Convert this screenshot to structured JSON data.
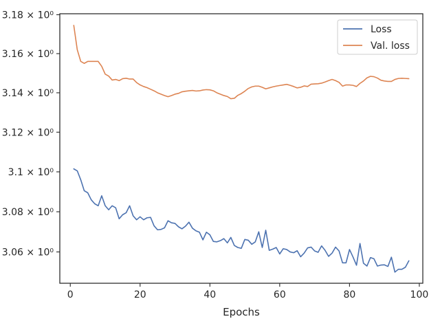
{
  "chart_data": {
    "type": "line",
    "title": "",
    "xlabel": "Epochs",
    "ylabel": "",
    "yscale": "log",
    "xlim": [
      -3,
      101
    ],
    "ylim": [
      3.0445,
      3.1805
    ],
    "xticks": [
      0,
      20,
      40,
      60,
      80,
      100
    ],
    "xtick_labels": [
      "0",
      "20",
      "40",
      "60",
      "80",
      "100"
    ],
    "yticks": [
      3.06,
      3.08,
      3.1,
      3.12,
      3.14,
      3.16,
      3.18
    ],
    "ytick_labels": [
      "3.06 × 10⁰",
      "3.08 × 10⁰",
      "3.1 × 10⁰",
      "3.12 × 10⁰",
      "3.14 × 10⁰",
      "3.16 × 10⁰",
      "3.18 × 10⁰"
    ],
    "grid": false,
    "legend": "top-right",
    "x": [
      1,
      2,
      3,
      4,
      5,
      6,
      7,
      8,
      9,
      10,
      11,
      12,
      13,
      14,
      15,
      16,
      17,
      18,
      19,
      20,
      21,
      22,
      23,
      24,
      25,
      26,
      27,
      28,
      29,
      30,
      31,
      32,
      33,
      34,
      35,
      36,
      37,
      38,
      39,
      40,
      41,
      42,
      43,
      44,
      45,
      46,
      47,
      48,
      49,
      50,
      51,
      52,
      53,
      54,
      55,
      56,
      57,
      58,
      59,
      60,
      61,
      62,
      63,
      64,
      65,
      66,
      67,
      68,
      69,
      70,
      71,
      72,
      73,
      74,
      75,
      76,
      77,
      78,
      79,
      80,
      81,
      82,
      83,
      84,
      85,
      86,
      87,
      88,
      89,
      90,
      91,
      92,
      93,
      94,
      95,
      96,
      97
    ],
    "series": [
      {
        "name": "Loss",
        "color": "#4c72b0",
        "values": [
          3.1015,
          3.1005,
          3.096,
          3.0905,
          3.0895,
          3.086,
          3.084,
          3.083,
          3.088,
          3.083,
          3.081,
          3.083,
          3.082,
          3.0765,
          3.0785,
          3.0795,
          3.083,
          3.078,
          3.076,
          3.0775,
          3.076,
          3.077,
          3.0772,
          3.073,
          3.071,
          3.0712,
          3.072,
          3.0755,
          3.0745,
          3.0742,
          3.0725,
          3.0715,
          3.0728,
          3.0748,
          3.0718,
          3.0705,
          3.0698,
          3.066,
          3.0698,
          3.0685,
          3.0652,
          3.065,
          3.0656,
          3.0666,
          3.0645,
          3.0672,
          3.0632,
          3.0622,
          3.0618,
          3.0662,
          3.0658,
          3.0638,
          3.065,
          3.07,
          3.0622,
          3.0708,
          3.0608,
          3.0614,
          3.0622,
          3.059,
          3.0616,
          3.0612,
          3.06,
          3.0596,
          3.0606,
          3.0576,
          3.0594,
          3.062,
          3.0624,
          3.0605,
          3.0598,
          3.063,
          3.0608,
          3.0578,
          3.0594,
          3.0624,
          3.0605,
          3.0546,
          3.0546,
          3.0612,
          3.0575,
          3.0534,
          3.0642,
          3.0544,
          3.053,
          3.0572,
          3.0566,
          3.053,
          3.0535,
          3.0536,
          3.0528,
          3.0574,
          3.05,
          3.0514,
          3.0514,
          3.0524,
          3.0556
        ]
      },
      {
        "name": "Val. loss",
        "color": "#dd8452",
        "values": [
          3.1745,
          3.162,
          3.156,
          3.155,
          3.156,
          3.156,
          3.156,
          3.156,
          3.1535,
          3.1495,
          3.1485,
          3.1465,
          3.1468,
          3.1462,
          3.1472,
          3.1474,
          3.147,
          3.147,
          3.1452,
          3.144,
          3.1432,
          3.1426,
          3.1418,
          3.141,
          3.14,
          3.1393,
          3.1386,
          3.138,
          3.1386,
          3.1393,
          3.1397,
          3.1405,
          3.1408,
          3.141,
          3.1412,
          3.1409,
          3.141,
          3.1414,
          3.1416,
          3.1415,
          3.141,
          3.14,
          3.1393,
          3.1386,
          3.1381,
          3.137,
          3.1372,
          3.1387,
          3.1396,
          3.1408,
          3.1422,
          3.143,
          3.1434,
          3.1434,
          3.1428,
          3.142,
          3.1425,
          3.143,
          3.1434,
          3.1437,
          3.144,
          3.1443,
          3.1438,
          3.1432,
          3.1425,
          3.1428,
          3.1435,
          3.1432,
          3.1444,
          3.1445,
          3.1446,
          3.1449,
          3.1455,
          3.1462,
          3.1468,
          3.1462,
          3.1453,
          3.1434,
          3.144,
          3.144,
          3.1438,
          3.1432,
          3.1448,
          3.146,
          3.1476,
          3.1484,
          3.1482,
          3.1475,
          3.1464,
          3.146,
          3.1458,
          3.1458,
          3.1468,
          3.1473,
          3.1474,
          3.1473,
          3.1472
        ]
      }
    ]
  }
}
